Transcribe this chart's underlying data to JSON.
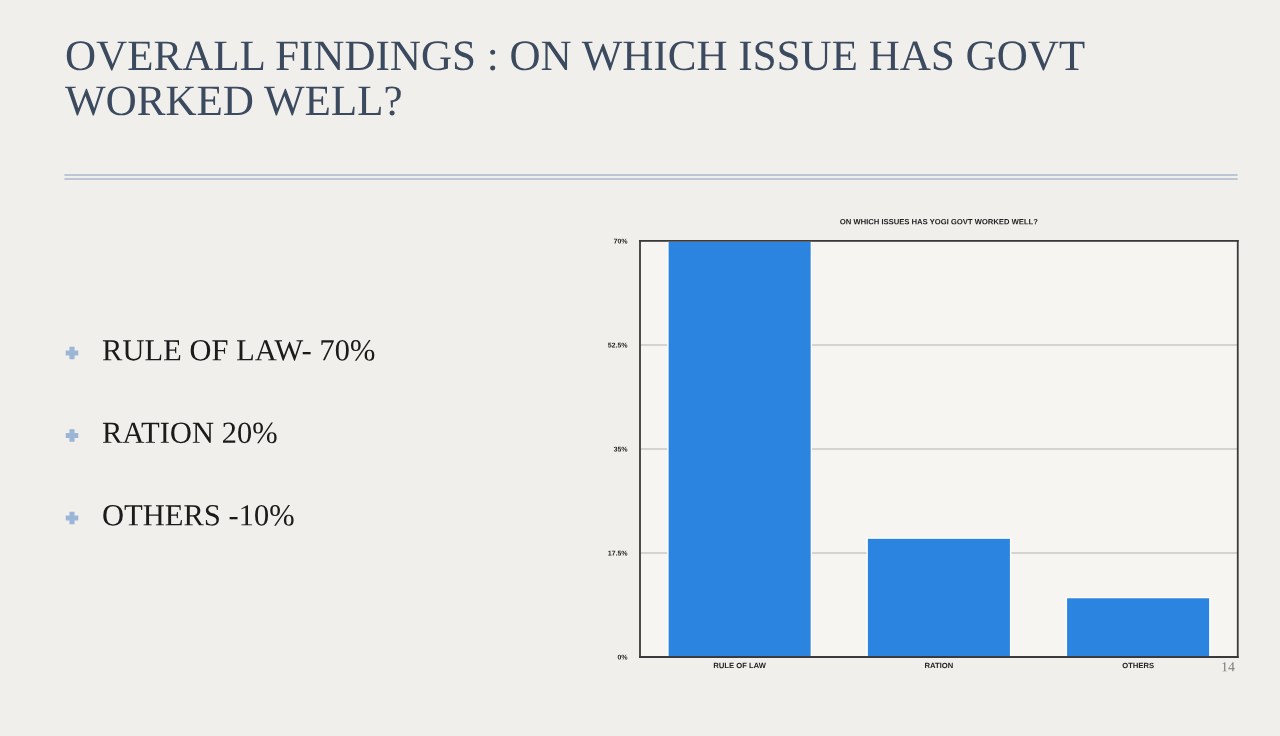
{
  "chart_data": {
    "type": "bar",
    "title": "OVERALL FINDINGS : ON WHICH ISSUE HAS GOVT\nWORKED WELL?",
    "subtitle": "ON WHICH ISSUES HAS YOGI GOVT WORKED WELL?",
    "categories": [
      "RULE OF LAW",
      "RATION",
      "OTHERS"
    ],
    "values": [
      70,
      20,
      10
    ],
    "color": "#2a84e0",
    "ylim": [
      0,
      70
    ],
    "yticks": [
      {
        "value": 0,
        "label": "0%"
      },
      {
        "value": 17.5,
        "label": "17.5%"
      },
      {
        "value": 35,
        "label": "35%"
      },
      {
        "value": 52.5,
        "label": "52.5%"
      },
      {
        "value": 70,
        "label": "70%"
      }
    ],
    "grid": "y",
    "annotations": [
      "RULE OF LAW- 70%",
      "RATION 20%",
      "OTHERS -10%",
      "14"
    ]
  }
}
